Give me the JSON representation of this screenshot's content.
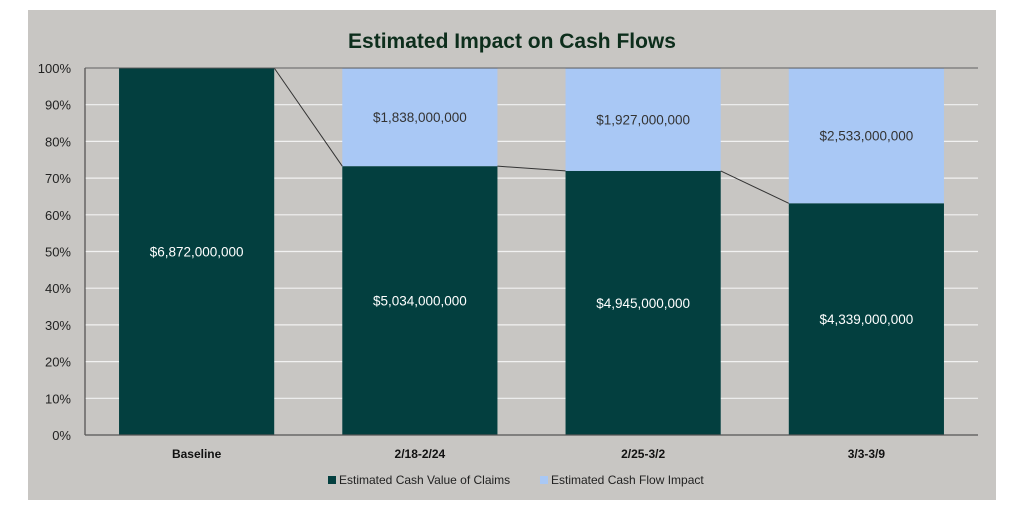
{
  "chart_data": {
    "type": "bar",
    "stacked": "percent",
    "title": "Estimated Impact on Cash Flows",
    "categories": [
      "Baseline",
      "2/18-2/24",
      "2/25-3/2",
      "3/3-3/9"
    ],
    "series": [
      {
        "name": "Estimated Cash Value of Claims",
        "color": "#033f3f",
        "values": [
          6872000000,
          5034000000,
          4945000000,
          4339000000
        ],
        "labels": [
          "$6,872,000,000",
          "$5,034,000,000",
          "$4,945,000,000",
          "$4,339,000,000"
        ]
      },
      {
        "name": "Estimated Cash Flow Impact",
        "color": "#a9c8f5",
        "values": [
          0,
          1838000000,
          1927000000,
          2533000000
        ],
        "labels": [
          "",
          "$1,838,000,000",
          "$1,927,000,000",
          "$2,533,000,000"
        ]
      }
    ],
    "yticks": [
      "0%",
      "10%",
      "20%",
      "30%",
      "40%",
      "50%",
      "60%",
      "70%",
      "80%",
      "90%",
      "100%"
    ],
    "ylim": [
      0,
      100
    ],
    "grid": true,
    "series_lines": true,
    "legend": "bottom",
    "background": "#c8c6c3"
  }
}
